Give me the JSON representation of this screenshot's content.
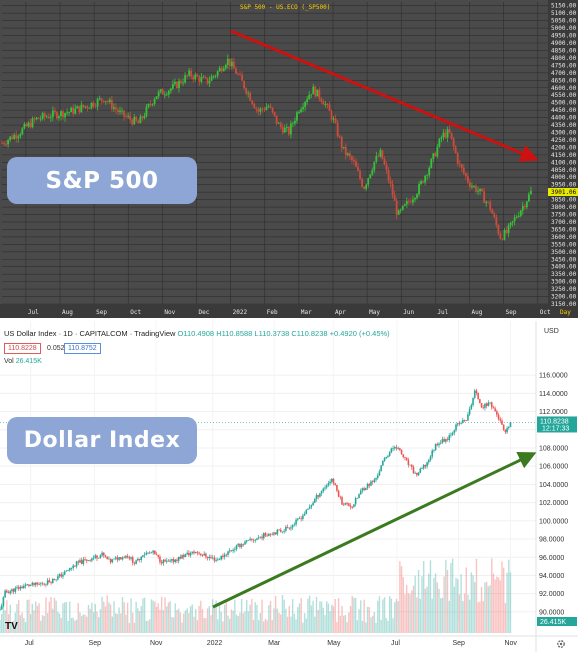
{
  "sp500": {
    "badge": "S&P 500",
    "header": "S&P 500 - US.ECO (_SP500)",
    "unit_label": "Day",
    "current_price": "3901.06",
    "colors": {
      "background": "#4a4a4a",
      "up": "#38c23a",
      "down": "#d14a3a",
      "trend": "#cc1111",
      "badge": "#8ea6d6"
    }
  },
  "usd": {
    "badge": "Dollar Index",
    "header": {
      "title": "US Dollar Index · 1D · CAPITALCOM · TradingView",
      "ohlc": "O110.4908 H110.8588 L110.3738 C110.8238 +0.4920 (+0.45%)",
      "sell": "110.8228",
      "spread": "0.0524",
      "buy": "110.8752"
    },
    "volume_label": "Vol",
    "volume_value": "26.415K",
    "currency": "USD",
    "current_price": "110.8238",
    "countdown": "12:17:33",
    "volume_badge": "26.415K",
    "logo": "TV",
    "colors": {
      "up": "#26a69a",
      "down": "#ef5350",
      "trend": "#3b7a1e",
      "badge": "#8ea6d6"
    }
  },
  "chart_data": [
    {
      "type": "line",
      "title": "S&P 500",
      "x_ticks": [
        "Jul",
        "Aug",
        "Sep",
        "Oct",
        "Nov",
        "Dec",
        "2022",
        "Feb",
        "Mar",
        "Apr",
        "May",
        "Jun",
        "Jul",
        "Aug",
        "Sep",
        "Oct"
      ],
      "y_ticks": [
        "5150.00",
        "5100.00",
        "5050.00",
        "5000.00",
        "4950.00",
        "4900.00",
        "4850.00",
        "4800.00",
        "4750.00",
        "4700.00",
        "4650.00",
        "4600.00",
        "4550.00",
        "4500.00",
        "4450.00",
        "4400.00",
        "4350.00",
        "4300.00",
        "4250.00",
        "4200.00",
        "4150.00",
        "4100.00",
        "4050.00",
        "4000.00",
        "3950.00",
        "3900.00",
        "3850.00",
        "3800.00",
        "3750.00",
        "3700.00",
        "3650.00",
        "3600.00",
        "3550.00",
        "3500.00",
        "3450.00",
        "3400.00",
        "3350.00",
        "3300.00",
        "3250.00",
        "3200.00",
        "3150.00"
      ],
      "ylim": [
        3150,
        5175
      ],
      "series": [
        {
          "values": [
            [
              0,
              4230
            ],
            [
              0.5,
              4300
            ],
            [
              1,
              4390
            ],
            [
              1.5,
              4420
            ],
            [
              2,
              4440
            ],
            [
              2.5,
              4480
            ],
            [
              3,
              4530
            ],
            [
              3.5,
              4420
            ],
            [
              4,
              4360
            ],
            [
              4.5,
              4550
            ],
            [
              5,
              4600
            ],
            [
              5.5,
              4690
            ],
            [
              6,
              4640
            ],
            [
              6.3,
              4700
            ],
            [
              6.6,
              4790
            ],
            [
              6.9,
              4690
            ],
            [
              7.2,
              4570
            ],
            [
              7.5,
              4440
            ],
            [
              7.8,
              4480
            ],
            [
              8.1,
              4350
            ],
            [
              8.4,
              4300
            ],
            [
              8.7,
              4460
            ],
            [
              9.1,
              4590
            ],
            [
              9.4,
              4520
            ],
            [
              9.7,
              4390
            ],
            [
              10.0,
              4180
            ],
            [
              10.3,
              4100
            ],
            [
              10.6,
              3930
            ],
            [
              10.9,
              4100
            ],
            [
              11.1,
              4160
            ],
            [
              11.4,
              3930
            ],
            [
              11.6,
              3740
            ],
            [
              11.9,
              3830
            ],
            [
              12.2,
              3920
            ],
            [
              12.6,
              4110
            ],
            [
              12.9,
              4280
            ],
            [
              13.1,
              4300
            ],
            [
              13.4,
              4080
            ],
            [
              13.7,
              3960
            ],
            [
              14.0,
              3900
            ],
            [
              14.3,
              3800
            ],
            [
              14.6,
              3600
            ],
            [
              14.8,
              3630
            ],
            [
              15.1,
              3750
            ],
            [
              15.3,
              3820
            ],
            [
              15.5,
              3901
            ]
          ]
        }
      ],
      "annotations": [
        "S&P 500"
      ]
    },
    {
      "type": "line",
      "title": "US Dollar Index · 1D · CAPITALCOM",
      "x_ticks": [
        "Jul",
        "Sep",
        "Nov",
        "2022",
        "Mar",
        "May",
        "Jul",
        "Sep",
        "Nov"
      ],
      "y_ticks": [
        "116.0000",
        "114.0000",
        "112.0000",
        "110.0000",
        "108.0000",
        "106.0000",
        "104.0000",
        "102.0000",
        "100.0000",
        "98.0000",
        "96.0000",
        "94.0000",
        "92.0000",
        "90.0000"
      ],
      "ylim": [
        89,
        117
      ],
      "series": [
        {
          "values": [
            [
              0,
              90.2
            ],
            [
              0.2,
              92.1
            ],
            [
              0.6,
              92.5
            ],
            [
              1,
              92.9
            ],
            [
              1.5,
              93.0
            ],
            [
              2,
              93.4
            ],
            [
              2.5,
              94.2
            ],
            [
              3,
              95.3
            ],
            [
              3.5,
              95.8
            ],
            [
              4,
              96.3
            ],
            [
              4.3,
              95.5
            ],
            [
              4.6,
              95.9
            ],
            [
              5,
              96.2
            ],
            [
              5.3,
              95.3
            ],
            [
              5.6,
              96.4
            ],
            [
              6,
              96.5
            ],
            [
              6.3,
              95.6
            ],
            [
              6.6,
              95.4
            ],
            [
              7,
              95.9
            ],
            [
              7.3,
              96.3
            ],
            [
              7.7,
              96.6
            ],
            [
              8,
              96.2
            ],
            [
              8.5,
              95.7
            ],
            [
              9,
              96.7
            ],
            [
              9.5,
              97.5
            ],
            [
              10,
              98.0
            ],
            [
              10.5,
              98.6
            ],
            [
              11,
              98.9
            ],
            [
              11.5,
              99.6
            ],
            [
              12,
              101.0
            ],
            [
              12.5,
              103.0
            ],
            [
              13,
              104.6
            ],
            [
              13.4,
              102.0
            ],
            [
              13.8,
              101.6
            ],
            [
              14.2,
              103.5
            ],
            [
              14.7,
              104.5
            ],
            [
              15.1,
              107.0
            ],
            [
              15.5,
              108.3
            ],
            [
              15.9,
              106.6
            ],
            [
              16.3,
              105.0
            ],
            [
              16.7,
              106.2
            ],
            [
              17.1,
              108.5
            ],
            [
              17.5,
              109.0
            ],
            [
              17.9,
              110.5
            ],
            [
              18.3,
              111.2
            ],
            [
              18.6,
              114.2
            ],
            [
              18.9,
              112.5
            ],
            [
              19.2,
              113.0
            ],
            [
              19.5,
              111.5
            ],
            [
              19.8,
              109.5
            ],
            [
              20.0,
              110.8
            ]
          ]
        },
        {
          "name": "Vol",
          "values": []
        }
      ],
      "annotations": [
        "Dollar Index"
      ]
    }
  ]
}
